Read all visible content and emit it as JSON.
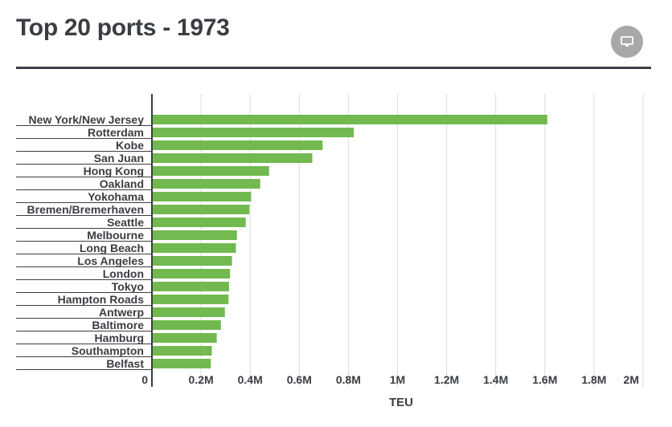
{
  "header": {
    "title": "Top 20 ports - 1973",
    "menu_icon": "monitor-icon"
  },
  "colors": {
    "bar": "#72b94f",
    "grid": "#dcdcdc",
    "axis": "#3a3d42",
    "menu_bg": "#a7a8aa"
  },
  "chart_data": {
    "type": "bar",
    "orientation": "horizontal",
    "title": "Top 20 ports - 1973",
    "xlabel": "TEU",
    "ylabel": "",
    "xlim": [
      0,
      2000000
    ],
    "grid": true,
    "xticks": [
      {
        "value": 0,
        "label": "0"
      },
      {
        "value": 200000,
        "label": "0.2M"
      },
      {
        "value": 400000,
        "label": "0.4M"
      },
      {
        "value": 600000,
        "label": "0.6M"
      },
      {
        "value": 800000,
        "label": "0.8M"
      },
      {
        "value": 1000000,
        "label": "1M"
      },
      {
        "value": 1200000,
        "label": "1.2M"
      },
      {
        "value": 1400000,
        "label": "1.4M"
      },
      {
        "value": 1600000,
        "label": "1.6M"
      },
      {
        "value": 1800000,
        "label": "1.8M"
      },
      {
        "value": 2000000,
        "label": "2M"
      }
    ],
    "categories": [
      "New York/New Jersey",
      "Rotterdam",
      "Kobe",
      "San Juan",
      "Hong Kong",
      "Oakland",
      "Yokohama",
      "Bremen/Bremerhaven",
      "Seattle",
      "Melbourne",
      "Long Beach",
      "Los Angeles",
      "London",
      "Tokyo",
      "Hampton Roads",
      "Antwerp",
      "Baltimore",
      "Hamburg",
      "Southampton",
      "Belfast"
    ],
    "values": [
      1610000,
      822000,
      695000,
      653000,
      477000,
      441000,
      404000,
      397000,
      382000,
      346000,
      342000,
      326000,
      318000,
      314000,
      312000,
      297000,
      281000,
      264000,
      244000,
      240000
    ]
  }
}
